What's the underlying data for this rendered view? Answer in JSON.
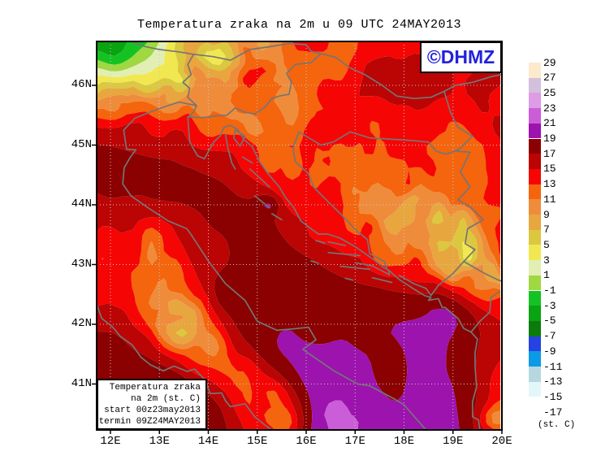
{
  "title": "Temperatura zraka na 2m u 09 UTC 24MAY2013",
  "logo": {
    "text": "©DHMZ",
    "color": "#2222dd"
  },
  "legend_box": {
    "lines": [
      "Temperatura zraka",
      "na 2m (st. C)",
      "start 00z23may2013",
      "termin 09Z24MAY2013"
    ]
  },
  "axes": {
    "y_ticks": [
      {
        "label": "46N",
        "lat": 46
      },
      {
        "label": "45N",
        "lat": 45
      },
      {
        "label": "44N",
        "lat": 44
      },
      {
        "label": "43N",
        "lat": 43
      },
      {
        "label": "42N",
        "lat": 42
      },
      {
        "label": "41N",
        "lat": 41
      }
    ],
    "x_ticks": [
      {
        "label": "12E",
        "lon": 12
      },
      {
        "label": "13E",
        "lon": 13
      },
      {
        "label": "14E",
        "lon": 14
      },
      {
        "label": "15E",
        "lon": 15
      },
      {
        "label": "16E",
        "lon": 16
      },
      {
        "label": "17E",
        "lon": 17
      },
      {
        "label": "18E",
        "lon": 18
      },
      {
        "label": "19E",
        "lon": 19
      },
      {
        "label": "20E",
        "lon": 20
      }
    ]
  },
  "colorbar": {
    "unit": "(st. C)",
    "boundary_labels": [
      "29",
      "27",
      "25",
      "23",
      "21",
      "19",
      "17",
      "15",
      "13",
      "11",
      "9",
      "7",
      "5",
      "3",
      "1",
      "-1",
      "-3",
      "-5",
      "-7",
      "-9",
      "-11",
      "-13",
      "-15",
      "-17"
    ],
    "cells": [
      {
        "upper": 29,
        "lower": 27,
        "color": "#fdeacc"
      },
      {
        "upper": 27,
        "lower": 25,
        "color": "#d3c0dd"
      },
      {
        "upper": 25,
        "lower": 23,
        "color": "#de9ce5"
      },
      {
        "upper": 23,
        "lower": 21,
        "color": "#cb5ed8"
      },
      {
        "upper": 21,
        "lower": 19,
        "color": "#9c13ae"
      },
      {
        "upper": 19,
        "lower": 17,
        "color": "#8b0000"
      },
      {
        "upper": 17,
        "lower": 15,
        "color": "#bb0404"
      },
      {
        "upper": 15,
        "lower": 13,
        "color": "#f60505"
      },
      {
        "upper": 13,
        "lower": 11,
        "color": "#f4650d"
      },
      {
        "upper": 11,
        "lower": 9,
        "color": "#ef8c3b"
      },
      {
        "upper": 9,
        "lower": 7,
        "color": "#e8a63e"
      },
      {
        "upper": 7,
        "lower": 5,
        "color": "#dcc83e"
      },
      {
        "upper": 5,
        "lower": 3,
        "color": "#f1e851"
      },
      {
        "upper": 3,
        "lower": 1,
        "color": "#e1efb5"
      },
      {
        "upper": 1,
        "lower": -1,
        "color": "#9fd841"
      },
      {
        "upper": -1,
        "lower": -3,
        "color": "#14c322"
      },
      {
        "upper": -3,
        "lower": -5,
        "color": "#0aa311"
      },
      {
        "upper": -5,
        "lower": -7,
        "color": "#0b7c0b"
      },
      {
        "upper": -7,
        "lower": -9,
        "color": "#2443e2"
      },
      {
        "upper": -9,
        "lower": -11,
        "color": "#0c99e6"
      },
      {
        "upper": -11,
        "lower": -13,
        "color": "#b6d7e0"
      },
      {
        "upper": -13,
        "lower": -15,
        "color": "#e3f6fa"
      },
      {
        "upper": -15,
        "lower": -17,
        "color": "#ffffff"
      }
    ]
  },
  "map_colors": {
    "coastline": "#757575",
    "grid": "#c8c8c8",
    "frame": "#000000",
    "background": "#ffffff"
  }
}
